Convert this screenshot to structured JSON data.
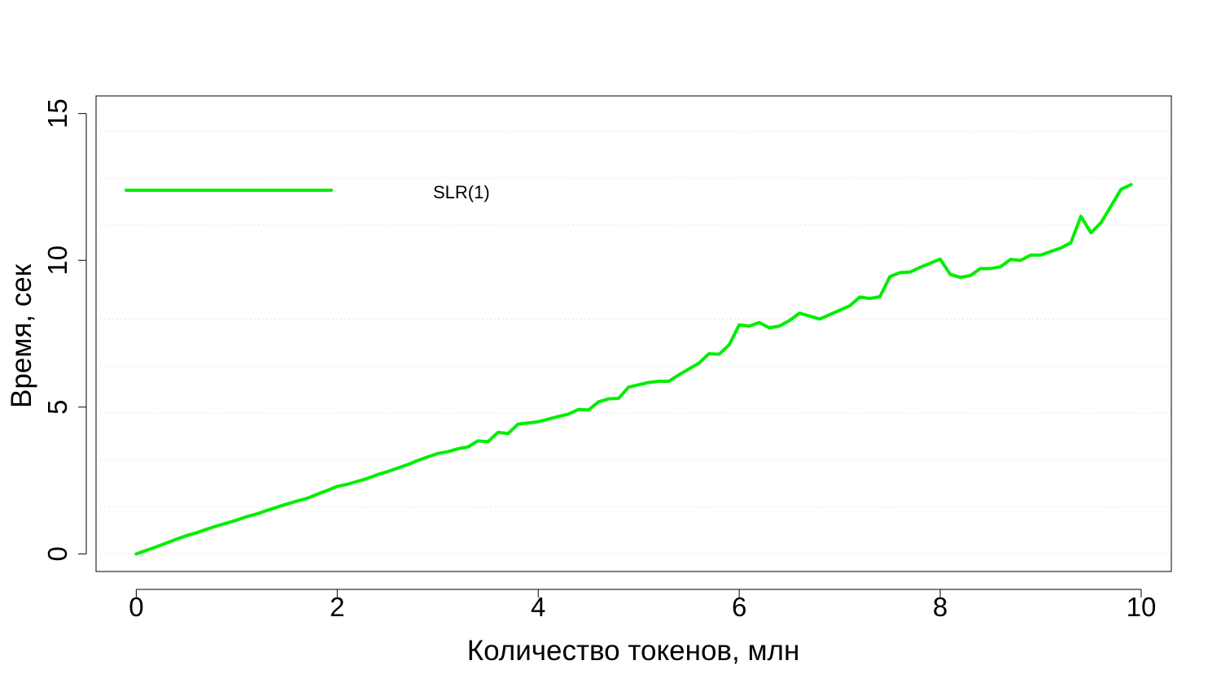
{
  "chart_data": {
    "type": "line",
    "title": "",
    "xlabel": "Количество токенов, млн",
    "ylabel": "Время, сек",
    "xlim": [
      -0.4,
      10.3
    ],
    "ylim": [
      -0.6,
      15.6
    ],
    "xticks": [
      0,
      2,
      4,
      6,
      8,
      10
    ],
    "yticks": [
      0,
      5,
      10,
      15
    ],
    "grid": true,
    "grid_style": "horizontal dotted",
    "legend": {
      "position": "top-left",
      "entries": [
        "SLR(1)"
      ]
    },
    "series": [
      {
        "name": "SLR(1)",
        "color": "#00EE00",
        "x": [
          0.0,
          0.1,
          0.2,
          0.3,
          0.4,
          0.5,
          0.6,
          0.7,
          0.8,
          0.9,
          1.0,
          1.1,
          1.2,
          1.3,
          1.4,
          1.5,
          1.6,
          1.7,
          1.8,
          1.9,
          2.0,
          2.1,
          2.2,
          2.3,
          2.4,
          2.5,
          2.6,
          2.7,
          2.8,
          2.9,
          3.0,
          3.1,
          3.2,
          3.3,
          3.4,
          3.5,
          3.6,
          3.7,
          3.8,
          3.9,
          4.0,
          4.1,
          4.2,
          4.3,
          4.4,
          4.5,
          4.6,
          4.7,
          4.8,
          4.9,
          5.0,
          5.1,
          5.2,
          5.3,
          5.4,
          5.5,
          5.6,
          5.7,
          5.8,
          5.9,
          6.0,
          6.1,
          6.2,
          6.3,
          6.4,
          6.5,
          6.6,
          6.7,
          6.8,
          6.9,
          7.0,
          7.1,
          7.2,
          7.3,
          7.4,
          7.5,
          7.6,
          7.7,
          7.8,
          7.9,
          8.0,
          8.1,
          8.2,
          8.3,
          8.4,
          8.5,
          8.6,
          8.7,
          8.8,
          8.9,
          9.0,
          9.1,
          9.2,
          9.3,
          9.4,
          9.5,
          9.6,
          9.7,
          9.8,
          9.9
        ],
        "y": [
          0.0,
          0.12,
          0.24,
          0.37,
          0.5,
          0.62,
          0.72,
          0.84,
          0.95,
          1.05,
          1.15,
          1.27,
          1.36,
          1.48,
          1.59,
          1.7,
          1.8,
          1.89,
          2.03,
          2.16,
          2.3,
          2.37,
          2.47,
          2.57,
          2.7,
          2.8,
          2.92,
          3.04,
          3.18,
          3.3,
          3.42,
          3.48,
          3.58,
          3.64,
          3.85,
          3.82,
          4.14,
          4.1,
          4.42,
          4.46,
          4.5,
          4.59,
          4.68,
          4.76,
          4.92,
          4.9,
          5.18,
          5.28,
          5.3,
          5.68,
          5.76,
          5.84,
          5.88,
          5.88,
          6.1,
          6.3,
          6.5,
          6.82,
          6.8,
          7.12,
          7.8,
          7.76,
          7.88,
          7.7,
          7.76,
          7.95,
          8.2,
          8.1,
          8.0,
          8.15,
          8.3,
          8.45,
          8.75,
          8.7,
          8.76,
          9.45,
          9.58,
          9.6,
          9.76,
          9.9,
          10.04,
          9.52,
          9.42,
          9.48,
          9.72,
          9.72,
          9.78,
          10.03,
          10.0,
          10.18,
          10.18,
          10.3,
          10.42,
          10.6,
          11.5,
          10.94,
          11.28,
          11.85,
          12.42,
          12.58
        ]
      }
    ]
  }
}
